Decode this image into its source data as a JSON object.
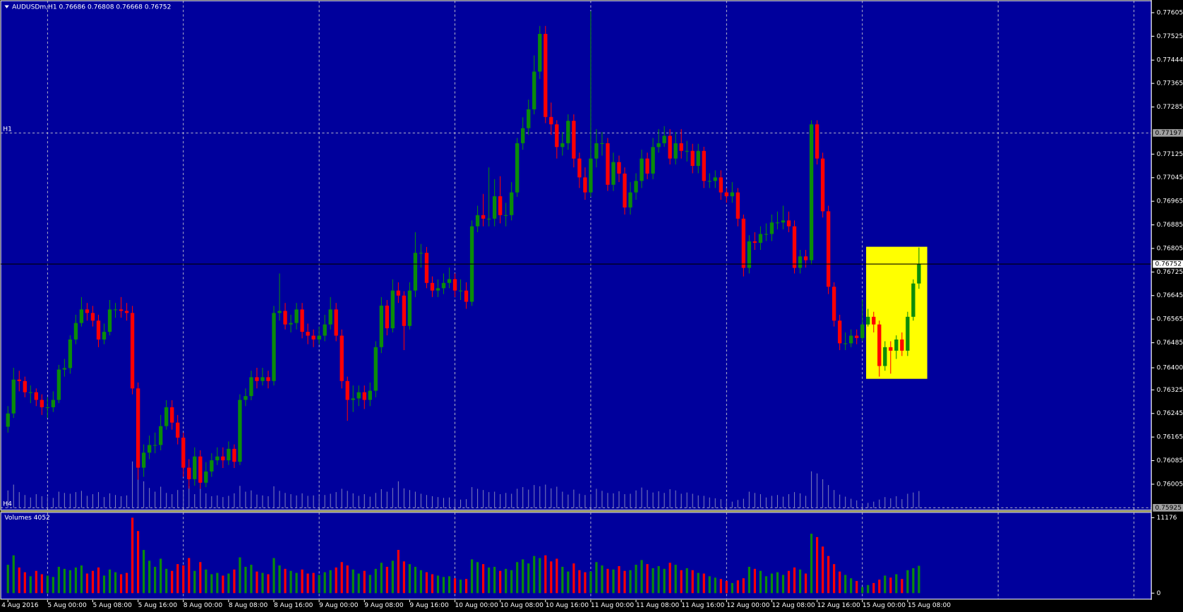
{
  "chart_data": {
    "type": "candlestick",
    "title": "AUDUSDm,H1 0.76686 0.76808 0.76668 0.76752",
    "open": [
      0.762,
      0.76245,
      0.7636,
      0.76355,
      0.76317,
      0.76317,
      0.76291,
      0.76266,
      0.76266,
      0.76291,
      0.76394,
      0.76399,
      0.76496,
      0.76552,
      0.76598,
      0.76586,
      0.7656,
      0.76496,
      0.76522,
      0.76598,
      0.76598,
      0.76593,
      0.76586,
      0.7633,
      0.76061,
      0.76112,
      0.76138,
      0.76138,
      0.76202,
      0.76266,
      0.76214,
      0.76163,
      0.76061,
      0.76022,
      0.76099,
      0.7601,
      0.76048,
      0.76086,
      0.76099,
      0.76086,
      0.76125,
      0.76081,
      0.76291,
      0.76304,
      0.76368,
      0.76355,
      0.76368,
      0.76355,
      0.76586,
      0.76593,
      0.76547,
      0.76552,
      0.76598,
      0.76522,
      0.76509,
      0.76496,
      0.76509,
      0.76547,
      0.76598,
      0.76509,
      0.76355,
      0.76291,
      0.76296,
      0.76317,
      0.76291,
      0.76322,
      0.7647,
      0.76611,
      0.76534,
      0.76662,
      0.76645,
      0.76542,
      0.76662,
      0.7679,
      0.7679,
      0.76688,
      0.76662,
      0.7667,
      0.76688,
      0.76701,
      0.76662,
      0.76662,
      0.76624,
      0.7688,
      0.76918,
      0.76906,
      0.76906,
      0.76982,
      0.76918,
      0.76918,
      0.76995,
      0.77162,
      0.77213,
      0.77277,
      0.77405,
      0.77533,
      0.77251,
      0.77226,
      0.77149,
      0.77162,
      0.77238,
      0.7711,
      0.77046,
      0.76995,
      0.7711,
      0.77162,
      0.77162,
      0.77021,
      0.77098,
      0.77059,
      0.76944,
      0.76995,
      0.77034,
      0.7711,
      0.77059,
      0.77149,
      0.77162,
      0.77187,
      0.7711,
      0.77162,
      0.77136,
      0.77136,
      0.77085,
      0.77136,
      0.77034,
      0.77034,
      0.77046,
      0.76995,
      0.76982,
      0.76995,
      0.76906,
      0.76739,
      0.76829,
      0.76824,
      0.76854,
      0.76854,
      0.76893,
      0.76893,
      0.769,
      0.7688,
      0.76739,
      0.76778,
      0.76765,
      0.77226,
      0.7711,
      0.76931,
      0.76675,
      0.7656,
      0.76483,
      0.76483,
      0.76509,
      0.76501,
      0.76547,
      0.76573,
      0.76547,
      0.76406,
      0.7647,
      0.76458,
      0.76496,
      0.76458,
      0.76573,
      0.76686
    ],
    "high": [
      0.7627,
      0.764,
      0.7639,
      0.7637,
      0.7634,
      0.7633,
      0.7631,
      0.763,
      0.7632,
      0.7641,
      0.7643,
      0.7651,
      0.7658,
      0.7664,
      0.7662,
      0.7661,
      0.7658,
      0.7655,
      0.7663,
      0.7662,
      0.7664,
      0.7662,
      0.7661,
      0.7635,
      0.7614,
      0.7617,
      0.7618,
      0.7624,
      0.7629,
      0.7629,
      0.7624,
      0.7618,
      0.7609,
      0.7613,
      0.7612,
      0.7608,
      0.7611,
      0.7613,
      0.7613,
      0.7615,
      0.7614,
      0.7631,
      0.7633,
      0.7639,
      0.764,
      0.764,
      0.7639,
      0.7661,
      0.7672,
      0.7662,
      0.7658,
      0.7662,
      0.7662,
      0.7655,
      0.7653,
      0.7654,
      0.7658,
      0.7664,
      0.7662,
      0.7653,
      0.7637,
      0.7634,
      0.7634,
      0.7634,
      0.7635,
      0.7649,
      0.7664,
      0.7663,
      0.767,
      0.7669,
      0.7666,
      0.7669,
      0.7686,
      0.7682,
      0.7681,
      0.7671,
      0.767,
      0.7672,
      0.7674,
      0.7672,
      0.767,
      0.7669,
      0.769,
      0.7695,
      0.7699,
      0.7708,
      0.7704,
      0.7705,
      0.7696,
      0.7703,
      0.7718,
      0.7725,
      0.7731,
      0.7746,
      0.7756,
      0.7756,
      0.773,
      0.7724,
      0.772,
      0.7726,
      0.7726,
      0.7713,
      0.7708,
      0.7761,
      0.7721,
      0.772,
      0.7718,
      0.7713,
      0.7712,
      0.7708,
      0.7703,
      0.7706,
      0.7714,
      0.7713,
      0.7718,
      0.7721,
      0.7722,
      0.7721,
      0.772,
      0.7721,
      0.7717,
      0.7716,
      0.7716,
      0.7715,
      0.7706,
      0.7707,
      0.7707,
      0.7701,
      0.7703,
      0.7701,
      0.7692,
      0.7685,
      0.7686,
      0.7688,
      0.7689,
      0.7692,
      0.7693,
      0.7695,
      0.7693,
      0.769,
      0.768,
      0.768,
      0.7724,
      0.7724,
      0.7713,
      0.7695,
      0.7669,
      0.7658,
      0.7652,
      0.7653,
      0.7653,
      0.7663,
      0.766,
      0.7659,
      0.7656,
      0.7649,
      0.7649,
      0.7651,
      0.7652,
      0.7659,
      0.767,
      0.76808
    ],
    "low": [
      0.7618,
      0.7623,
      0.7632,
      0.763,
      0.7628,
      0.7627,
      0.7624,
      0.7623,
      0.7625,
      0.7628,
      0.7637,
      0.7638,
      0.7648,
      0.7654,
      0.7656,
      0.7654,
      0.7647,
      0.7648,
      0.7651,
      0.7657,
      0.7657,
      0.7656,
      0.7631,
      0.7602,
      0.7603,
      0.7609,
      0.7611,
      0.7612,
      0.7619,
      0.7619,
      0.7614,
      0.7603,
      0.7599,
      0.76,
      0.7599,
      0.75995,
      0.7603,
      0.7607,
      0.7606,
      0.7607,
      0.7606,
      0.7607,
      0.7627,
      0.7629,
      0.7633,
      0.7634,
      0.7633,
      0.7634,
      0.7656,
      0.7653,
      0.7652,
      0.7653,
      0.765,
      0.7648,
      0.7647,
      0.7648,
      0.7649,
      0.7653,
      0.7649,
      0.7633,
      0.7622,
      0.7625,
      0.7627,
      0.7626,
      0.7627,
      0.763,
      0.7645,
      0.7651,
      0.7652,
      0.7662,
      0.7646,
      0.7653,
      0.7664,
      0.7674,
      0.7667,
      0.7664,
      0.7664,
      0.7665,
      0.7667,
      0.7664,
      0.7663,
      0.766,
      0.7661,
      0.7686,
      0.7688,
      0.7688,
      0.7688,
      0.7689,
      0.7688,
      0.769,
      0.7698,
      0.7714,
      0.7719,
      0.7726,
      0.7738,
      0.7723,
      0.7719,
      0.7711,
      0.7712,
      0.7714,
      0.7708,
      0.7701,
      0.7697,
      0.7698,
      0.7708,
      0.7712,
      0.77,
      0.77,
      0.7703,
      0.7692,
      0.7692,
      0.7697,
      0.7701,
      0.7704,
      0.7704,
      0.7713,
      0.7715,
      0.7709,
      0.7709,
      0.7711,
      0.771,
      0.7706,
      0.7706,
      0.7701,
      0.7701,
      0.7701,
      0.7697,
      0.7696,
      0.7696,
      0.7688,
      0.7671,
      0.7672,
      0.768,
      0.768,
      0.7683,
      0.7683,
      0.7687,
      0.7687,
      0.7686,
      0.7672,
      0.7672,
      0.7674,
      0.7675,
      0.7709,
      0.7691,
      0.7665,
      0.7654,
      0.7646,
      0.7646,
      0.7647,
      0.7648,
      0.7649,
      0.7654,
      0.7652,
      0.7637,
      0.7639,
      0.7638,
      0.7643,
      0.7644,
      0.7644,
      0.7656,
      0.76668
    ],
    "close": [
      0.76245,
      0.7636,
      0.76355,
      0.76317,
      0.76317,
      0.76291,
      0.76266,
      0.76266,
      0.76291,
      0.76394,
      0.76399,
      0.76496,
      0.76552,
      0.76598,
      0.76586,
      0.7656,
      0.76496,
      0.76522,
      0.76598,
      0.76598,
      0.76593,
      0.76586,
      0.7633,
      0.76061,
      0.76112,
      0.76138,
      0.76138,
      0.76202,
      0.76266,
      0.76214,
      0.76163,
      0.76061,
      0.76022,
      0.76099,
      0.7601,
      0.76048,
      0.76086,
      0.76099,
      0.76086,
      0.76125,
      0.76081,
      0.76291,
      0.76304,
      0.76368,
      0.76355,
      0.76368,
      0.76355,
      0.76586,
      0.76593,
      0.76547,
      0.76552,
      0.76598,
      0.76522,
      0.76509,
      0.76496,
      0.76509,
      0.76547,
      0.76598,
      0.76509,
      0.76355,
      0.76291,
      0.76296,
      0.76317,
      0.76291,
      0.76322,
      0.7647,
      0.76611,
      0.76534,
      0.76662,
      0.76645,
      0.76542,
      0.76662,
      0.7679,
      0.7679,
      0.76688,
      0.76662,
      0.7667,
      0.76688,
      0.76701,
      0.76662,
      0.76662,
      0.76624,
      0.7688,
      0.76918,
      0.76906,
      0.76906,
      0.76982,
      0.76918,
      0.76918,
      0.76995,
      0.77162,
      0.77213,
      0.77277,
      0.77405,
      0.77533,
      0.77251,
      0.77226,
      0.77149,
      0.77162,
      0.77238,
      0.7711,
      0.77046,
      0.76995,
      0.7711,
      0.77162,
      0.77162,
      0.77021,
      0.77098,
      0.77059,
      0.76944,
      0.76995,
      0.77034,
      0.7711,
      0.77059,
      0.77149,
      0.77162,
      0.77187,
      0.7711,
      0.77162,
      0.77136,
      0.77136,
      0.77085,
      0.77136,
      0.77034,
      0.77034,
      0.77046,
      0.76995,
      0.76982,
      0.76995,
      0.76906,
      0.76739,
      0.76829,
      0.76824,
      0.76854,
      0.76854,
      0.76893,
      0.76893,
      0.769,
      0.7688,
      0.76739,
      0.76778,
      0.76765,
      0.77226,
      0.7711,
      0.76931,
      0.76675,
      0.7656,
      0.76483,
      0.76483,
      0.76509,
      0.76501,
      0.76547,
      0.76573,
      0.76547,
      0.76406,
      0.7647,
      0.76458,
      0.76496,
      0.76458,
      0.76573,
      0.76686,
      0.76752
    ],
    "up_color": "#0a8c0a",
    "down_color": "#ff0000",
    "ylim": [
      0.75917,
      0.77648
    ],
    "yticks": [
      0.77605,
      0.77525,
      0.77444,
      0.77365,
      0.77285,
      0.77125,
      0.77045,
      0.76965,
      0.76885,
      0.76805,
      0.76725,
      0.76645,
      0.76565,
      0.76485,
      {
        "value": 0.764,
        "label": "0.76400"
      },
      0.76325,
      0.76245,
      0.76165,
      0.76085,
      0.76005
    ],
    "levels": [
      {
        "name": "H1",
        "value": 0.77197
      },
      {
        "name": "H4",
        "value": 0.75925
      }
    ],
    "xticks": [
      {
        "value": 0,
        "label": "4 Aug 2016"
      },
      {
        "value": 7,
        "label": "5 Aug 00:00"
      },
      {
        "value": 15,
        "label": "5 Aug 08:00"
      },
      {
        "value": 23,
        "label": "5 Aug 16:00"
      },
      {
        "value": 31,
        "label": "8 Aug 00:00"
      },
      {
        "value": 39,
        "label": "8 Aug 08:00"
      },
      {
        "value": 47,
        "label": "8 Aug 16:00"
      },
      {
        "value": 55,
        "label": "9 Aug 00:00"
      },
      {
        "value": 63,
        "label": "9 Aug 08:00"
      },
      {
        "value": 71,
        "label": "9 Aug 16:00"
      },
      {
        "value": 79,
        "label": "10 Aug 00:00"
      },
      {
        "value": 87,
        "label": "10 Aug 08:00"
      },
      {
        "value": 95,
        "label": "10 Aug 16:00"
      },
      {
        "value": 103,
        "label": "11 Aug 00:00"
      },
      {
        "value": 111,
        "label": "11 Aug 08:00"
      },
      {
        "value": 119,
        "label": "11 Aug 16:00"
      },
      {
        "value": 127,
        "label": "12 Aug 00:00"
      },
      {
        "value": 135,
        "label": "12 Aug 08:00"
      },
      {
        "value": 143,
        "label": "12 Aug 16:00"
      },
      {
        "value": 151,
        "label": "15 Aug 00:00"
      },
      {
        "value": 159,
        "label": "15 Aug 08:00"
      }
    ],
    "grid": true,
    "volume": {
      "title": "Volumes 4052",
      "ylim": [
        0,
        11176
      ],
      "yticks": [
        11176,
        0
      ],
      "values": [
        4200,
        5600,
        3800,
        3100,
        2500,
        3300,
        2800,
        2600,
        2400,
        3900,
        3600,
        3400,
        3800,
        4100,
        2900,
        3300,
        3800,
        2600,
        3500,
        3100,
        2800,
        3000,
        11176,
        9200,
        6400,
        4800,
        3900,
        5100,
        3600,
        3300,
        4300,
        4100,
        5200,
        3300,
        4600,
        3500,
        2800,
        3000,
        2600,
        2900,
        3500,
        5300,
        3900,
        4200,
        3200,
        3000,
        2800,
        5200,
        4100,
        3600,
        3300,
        3000,
        3500,
        2900,
        3000,
        2700,
        3100,
        3400,
        3800,
        4600,
        4100,
        3500,
        2900,
        3300,
        2700,
        3600,
        4500,
        3900,
        4800,
        6400,
        4700,
        4300,
        3900,
        3400,
        3100,
        2800,
        2600,
        2400,
        2500,
        2200,
        2000,
        2100,
        5000,
        4600,
        4300,
        3800,
        3900,
        3300,
        3600,
        3400,
        4600,
        5000,
        4400,
        5500,
        5200,
        5600,
        4700,
        5100,
        3900,
        3200,
        4400,
        3400,
        3100,
        3200,
        4600,
        4100,
        3600,
        3500,
        4000,
        3300,
        3400,
        4200,
        4900,
        4300,
        3700,
        4000,
        3600,
        4500,
        4200,
        3400,
        3700,
        3400,
        3000,
        2900,
        2500,
        2300,
        2100,
        1800,
        1500,
        1900,
        2200,
        3900,
        3600,
        3300,
        2500,
        2900,
        3100,
        2700,
        3300,
        3800,
        3500,
        2900,
        8800,
        8300,
        6900,
        5500,
        4300,
        3200,
        2700,
        2200,
        1800,
        900,
        1200,
        1500,
        2000,
        2600,
        2300,
        2800,
        2100,
        3400,
        3700,
        4052
      ]
    }
  }
}
